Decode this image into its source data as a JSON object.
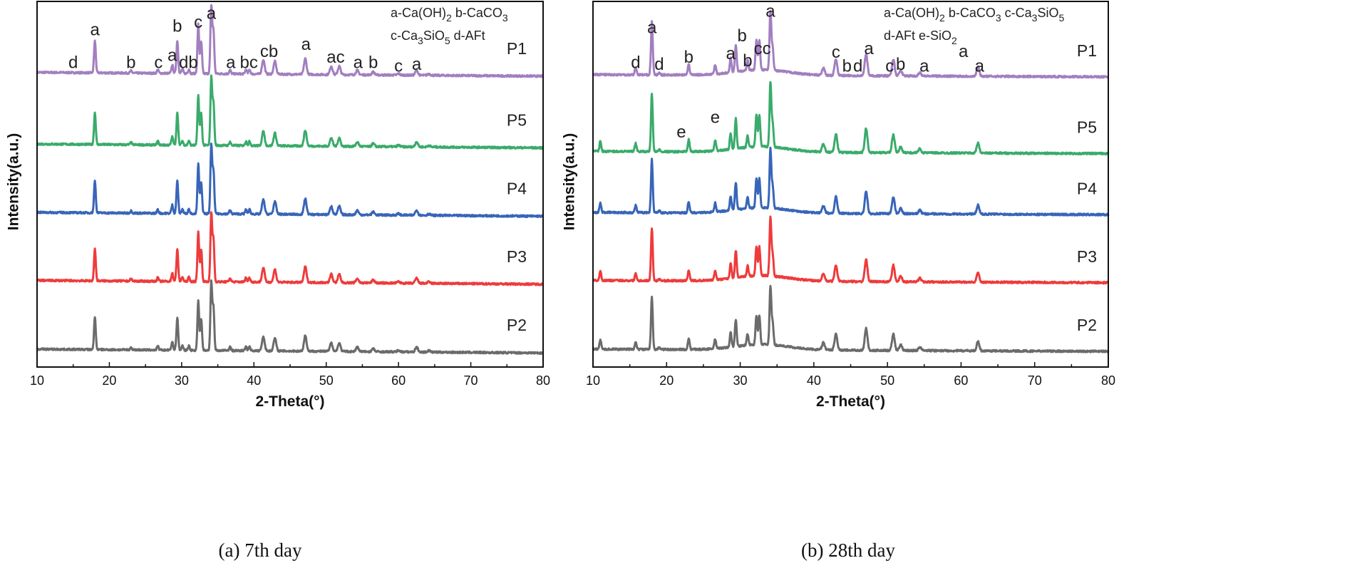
{
  "chart_data": [
    {
      "type": "line",
      "caption": "(a) 7th day",
      "xlabel": "2-Theta(°)",
      "ylabel": "Intensity(a.u.)",
      "xlim": [
        10,
        80
      ],
      "ylim": [
        0,
        100
      ],
      "xticks": [
        "10",
        "20",
        "30",
        "40",
        "50",
        "60",
        "70",
        "80"
      ],
      "legend": [
        "a-Ca(OH)2 b-CaCO3",
        "c-Ca3SiO5 d-AFt"
      ],
      "peaks": [
        [
          18.0,
          8.7
        ],
        [
          23.0,
          0.6
        ],
        [
          26.7,
          1
        ],
        [
          28.7,
          2.3
        ],
        [
          29.4,
          9
        ],
        [
          30.1,
          1.2
        ],
        [
          31.0,
          1.2
        ],
        [
          32.3,
          13.5
        ],
        [
          32.7,
          8.7
        ],
        [
          34.1,
          18.4
        ],
        [
          34.4,
          11.6
        ],
        [
          36.7,
          1
        ],
        [
          38.9,
          1.2
        ],
        [
          39.4,
          1.2
        ],
        [
          41.3,
          3.9
        ],
        [
          42.9,
          3.5
        ],
        [
          47.1,
          4.3
        ],
        [
          50.7,
          2.3
        ],
        [
          51.8,
          2.3
        ],
        [
          54.3,
          1.2
        ],
        [
          56.5,
          0.8
        ],
        [
          60.0,
          0.4
        ],
        [
          62.5,
          1.4
        ],
        [
          64.2,
          0.4
        ]
      ],
      "series": [
        {
          "name": "P1",
          "color": "#a27fc0",
          "offset": 80.6,
          "scale": 1.0
        },
        {
          "name": "P5",
          "color": "#3aab6b",
          "offset": 61,
          "scale": 1.0
        },
        {
          "name": "P4",
          "color": "#3865b8",
          "offset": 42.3,
          "scale": 1.0
        },
        {
          "name": "P3",
          "color": "#ee3b3b",
          "offset": 23.7,
          "scale": 1.0
        },
        {
          "name": "P2",
          "color": "#6b6b6b",
          "offset": 4.9,
          "scale": 1.0
        }
      ],
      "annotations": [
        {
          "t": "d",
          "x": 15,
          "y": 83
        },
        {
          "t": "a",
          "x": 18,
          "y": 92
        },
        {
          "t": "b",
          "x": 23,
          "y": 83
        },
        {
          "t": "c",
          "x": 26.8,
          "y": 83
        },
        {
          "t": "a",
          "x": 28.7,
          "y": 85
        },
        {
          "t": "db",
          "x": 30.6,
          "y": 83
        },
        {
          "t": "b",
          "x": 29.4,
          "y": 93
        },
        {
          "t": "c",
          "x": 32.3,
          "y": 94
        },
        {
          "t": "a",
          "x": 34.1,
          "y": 96.5
        },
        {
          "t": "a",
          "x": 36.8,
          "y": 83
        },
        {
          "t": "bc",
          "x": 39.3,
          "y": 83
        },
        {
          "t": "cb",
          "x": 42.1,
          "y": 86
        },
        {
          "t": "a",
          "x": 47.2,
          "y": 88
        },
        {
          "t": "ac",
          "x": 51.3,
          "y": 84.5
        },
        {
          "t": "a",
          "x": 54.4,
          "y": 83
        },
        {
          "t": "b",
          "x": 56.5,
          "y": 83
        },
        {
          "t": "c",
          "x": 60,
          "y": 82
        },
        {
          "t": "a",
          "x": 62.5,
          "y": 82.5
        }
      ]
    },
    {
      "type": "line",
      "caption": "(b) 28th day",
      "xlabel": "2-Theta(°)",
      "ylabel": "Intensity(a.u.)",
      "xlim": [
        10,
        80
      ],
      "ylim": [
        0,
        100
      ],
      "xticks": [
        "10",
        "20",
        "30",
        "40",
        "50",
        "60",
        "70",
        "80"
      ],
      "legend": [
        "a-Ca(OH)2 b-CaCO3 c-Ca3SiO5",
        "d-AFt e-SiO2"
      ],
      "peaks": [
        [
          11.0,
          2.5
        ],
        [
          15.8,
          2
        ],
        [
          18.0,
          14.5
        ],
        [
          19.0,
          0.5
        ],
        [
          23.0,
          3
        ],
        [
          26.6,
          2.5
        ],
        [
          28.7,
          4
        ],
        [
          29.4,
          7.5
        ],
        [
          31.0,
          3
        ],
        [
          32.2,
          8
        ],
        [
          32.6,
          8
        ],
        [
          34.1,
          16
        ],
        [
          34.4,
          6
        ],
        [
          41.3,
          2
        ],
        [
          43.0,
          4.5
        ],
        [
          47.1,
          6
        ],
        [
          50.8,
          4.5
        ],
        [
          51.8,
          1.5
        ],
        [
          54.4,
          1
        ],
        [
          62.3,
          2.5
        ]
      ],
      "series": [
        {
          "name": "P1",
          "color": "#a27fc0",
          "offset": 80,
          "scale": 1.0,
          "no_peak_at": 11.0
        },
        {
          "name": "P5",
          "color": "#3aab6b",
          "offset": 59,
          "scale": 1.1
        },
        {
          "name": "P4",
          "color": "#3865b8",
          "offset": 42.3,
          "scale": 1.0
        },
        {
          "name": "P3",
          "color": "#ee3b3b",
          "offset": 23.7,
          "scale": 1.0
        },
        {
          "name": "P2",
          "color": "#6b6b6b",
          "offset": 4.9,
          "scale": 1.0
        }
      ],
      "annotations": [
        {
          "t": "d",
          "x": 15.8,
          "y": 83
        },
        {
          "t": "a",
          "x": 18.0,
          "y": 92.6
        },
        {
          "t": "d",
          "x": 19.0,
          "y": 82.5
        },
        {
          "t": "b",
          "x": 23,
          "y": 84.5
        },
        {
          "t": "a",
          "x": 28.7,
          "y": 85.4
        },
        {
          "t": "b",
          "x": 29.4,
          "y": 90.3
        },
        {
          "t": "b",
          "x": 31,
          "y": 83.5
        },
        {
          "t": "cc",
          "x": 32.4,
          "y": 86.8
        },
        {
          "t": "a",
          "x": 34.1,
          "y": 97
        },
        {
          "t": "c",
          "x": 43,
          "y": 85.8
        },
        {
          "t": "b",
          "x": 44.5,
          "y": 82
        },
        {
          "t": "d",
          "x": 45.6,
          "y": 82
        },
        {
          "t": "a",
          "x": 47.1,
          "y": 86.8
        },
        {
          "t": "c",
          "x": 50.3,
          "y": 82
        },
        {
          "t": "a",
          "x": 50.9,
          "y": 86
        },
        {
          "t": "b",
          "x": 51.8,
          "y": 82.5
        },
        {
          "t": "a",
          "x": 55,
          "y": 82
        },
        {
          "t": "a",
          "x": 62.5,
          "y": 82
        },
        {
          "t": "e",
          "x": 22,
          "y": 64
        },
        {
          "t": "e",
          "x": 26.6,
          "y": 68
        }
      ]
    }
  ]
}
